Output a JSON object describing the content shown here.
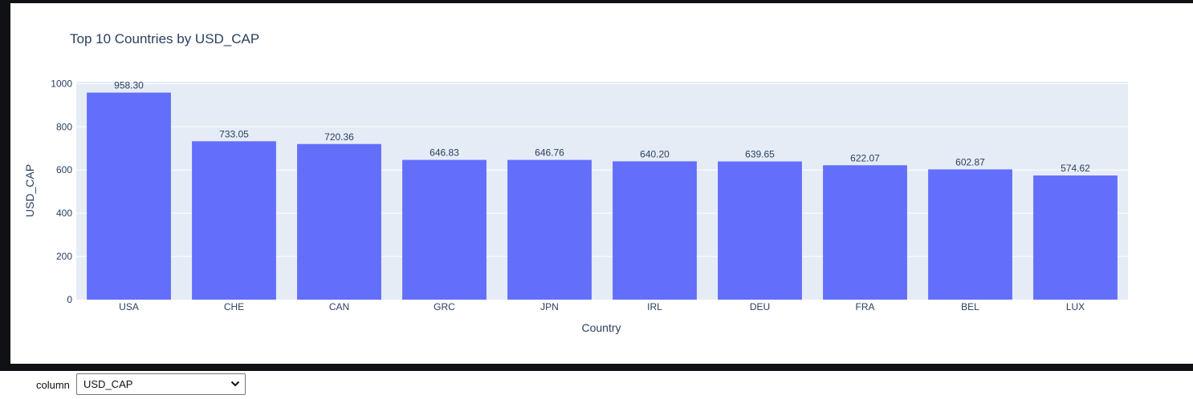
{
  "chart_data": {
    "type": "bar",
    "title": "Top 10 Countries by USD_CAP",
    "xlabel": "Country",
    "ylabel": "USD_CAP",
    "categories": [
      "USA",
      "CHE",
      "CAN",
      "GRC",
      "JPN",
      "IRL",
      "DEU",
      "FRA",
      "BEL",
      "LUX"
    ],
    "values": [
      958.3,
      733.05,
      720.36,
      646.83,
      646.76,
      640.2,
      639.65,
      622.07,
      602.87,
      574.62
    ],
    "value_labels": [
      "958.30",
      "733.05",
      "720.36",
      "646.83",
      "646.76",
      "640.20",
      "639.65",
      "622.07",
      "602.87",
      "574.62"
    ],
    "ylim": [
      0,
      1008.7
    ],
    "yticks": [
      0,
      200,
      400,
      600,
      800,
      1000
    ],
    "ytick_labels": [
      "0",
      "200",
      "400",
      "600",
      "800",
      "1000"
    ],
    "grid": true,
    "bar_color": "#636efa",
    "plot_bg": "#e5ecf6"
  },
  "controls": {
    "label": "column",
    "selected": "USD_CAP"
  }
}
